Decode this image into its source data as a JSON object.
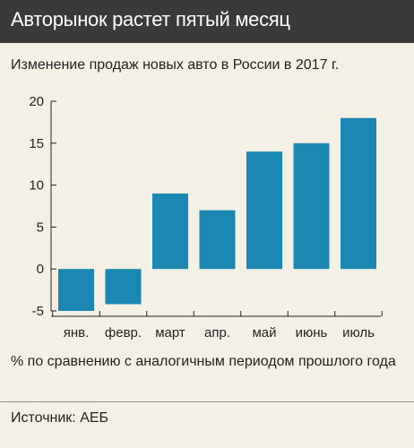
{
  "title": "Авторынок растет пятый месяц",
  "subtitle": "Изменение продаж новых авто в России в 2017 г.",
  "note": "% по сравнению с аналогичным периодом прошлого года",
  "source": "Источник: АЕБ",
  "colors": {
    "header_bg": "#3a3a3a",
    "background": "#f4f0e6",
    "bar": "#1b87b3",
    "text": "#231f20"
  },
  "chart_data": {
    "type": "bar",
    "categories": [
      "янв.",
      "февр.",
      "март",
      "апр.",
      "май",
      "июнь",
      "июль"
    ],
    "values": [
      -5,
      -4.2,
      9,
      7,
      14,
      15,
      18
    ],
    "ylim": [
      -5,
      20
    ],
    "yticks": [
      -5,
      0,
      5,
      10,
      15,
      20
    ],
    "ytick_labels": [
      "-5",
      "0",
      "5",
      "10",
      "15",
      "20"
    ],
    "grid": false,
    "xlabel": "",
    "ylabel": ""
  }
}
